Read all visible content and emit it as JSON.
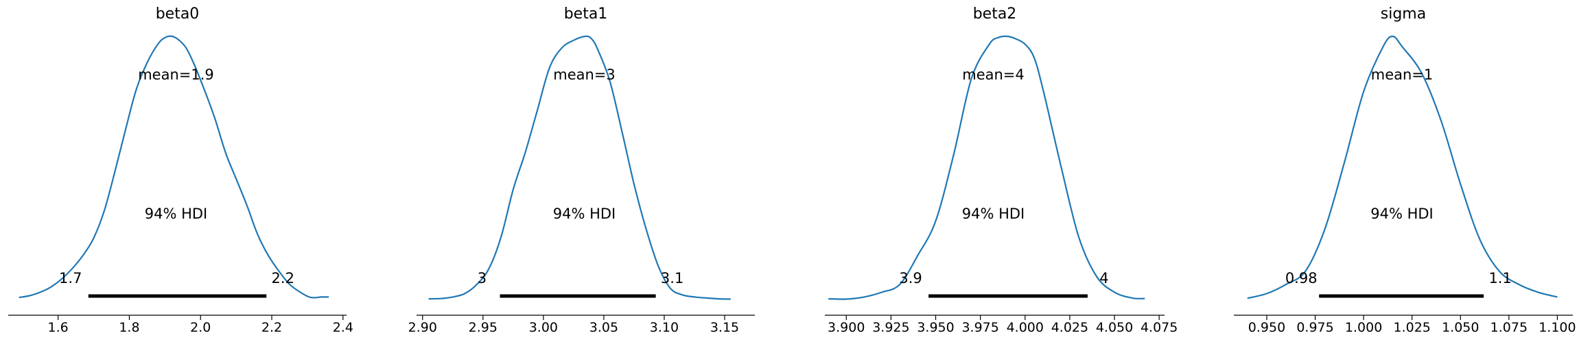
{
  "colors": {
    "density": "#1f77b4",
    "hdi_bar": "#000000",
    "axis": "#000000"
  },
  "chart_data": [
    {
      "type": "area",
      "title": "beta0",
      "mean_label": "mean=1.9",
      "hdi_label": "94% HDI",
      "hdi_low_label": "1.7",
      "hdi_high_label": "2.2",
      "hdi": [
        1.685,
        2.185
      ],
      "xlim": [
        1.46,
        2.41
      ],
      "xticks": [
        1.6,
        1.8,
        2.0,
        2.2,
        2.4
      ],
      "xtick_labels": [
        "1.6",
        "1.8",
        "2.0",
        "2.2",
        "2.4"
      ],
      "density": {
        "x": [
          1.49,
          1.52,
          1.55,
          1.58,
          1.61,
          1.64,
          1.67,
          1.7,
          1.73,
          1.76,
          1.79,
          1.82,
          1.85,
          1.88,
          1.9,
          1.92,
          1.94,
          1.96,
          1.98,
          2.01,
          2.04,
          2.07,
          2.1,
          2.13,
          2.16,
          2.19,
          2.22,
          2.25,
          2.28,
          2.31,
          2.34,
          2.36
        ],
        "y": [
          0.01,
          0.017,
          0.03,
          0.05,
          0.08,
          0.12,
          0.17,
          0.235,
          0.34,
          0.49,
          0.65,
          0.8,
          0.9,
          0.97,
          0.995,
          1.0,
          0.985,
          0.955,
          0.9,
          0.8,
          0.69,
          0.56,
          0.46,
          0.36,
          0.25,
          0.17,
          0.11,
          0.06,
          0.03,
          0.01,
          0.012,
          0.012
        ]
      }
    },
    {
      "type": "area",
      "title": "beta1",
      "mean_label": "mean=3",
      "hdi_label": "94% HDI",
      "hdi_low_label": "3",
      "hdi_high_label": "3.1",
      "hdi": [
        2.964,
        3.093
      ],
      "xlim": [
        2.895,
        3.175
      ],
      "xticks": [
        2.9,
        2.95,
        3.0,
        3.05,
        3.1,
        3.15
      ],
      "xtick_labels": [
        "2.90",
        "2.95",
        "3.00",
        "3.05",
        "3.10",
        "3.15"
      ],
      "density": {
        "x": [
          2.905,
          2.915,
          2.925,
          2.935,
          2.945,
          2.955,
          2.965,
          2.975,
          2.985,
          2.995,
          3.005,
          3.015,
          3.025,
          3.035,
          3.04,
          3.045,
          3.055,
          3.065,
          3.075,
          3.085,
          3.095,
          3.105,
          3.115,
          3.125,
          3.135,
          3.145,
          3.155
        ],
        "y": [
          0.005,
          0.006,
          0.012,
          0.025,
          0.06,
          0.12,
          0.24,
          0.42,
          0.56,
          0.72,
          0.88,
          0.955,
          0.985,
          1.0,
          0.99,
          0.95,
          0.83,
          0.64,
          0.44,
          0.27,
          0.13,
          0.045,
          0.02,
          0.012,
          0.008,
          0.005,
          0.004
        ]
      }
    },
    {
      "type": "area",
      "title": "beta2",
      "mean_label": "mean=4",
      "hdi_label": "94% HDI",
      "hdi_low_label": "3.9",
      "hdi_high_label": "4",
      "hdi": [
        3.946,
        4.035
      ],
      "xlim": [
        3.888,
        4.078
      ],
      "xticks": [
        3.9,
        3.925,
        3.95,
        3.975,
        4.0,
        4.025,
        4.05,
        4.075
      ],
      "xtick_labels": [
        "3.900",
        "3.925",
        "3.950",
        "3.975",
        "4.000",
        "4.025",
        "4.050",
        "4.075"
      ],
      "density": {
        "x": [
          3.89,
          3.9,
          3.91,
          3.92,
          3.93,
          3.94,
          3.95,
          3.96,
          3.97,
          3.98,
          3.985,
          3.99,
          3.995,
          4.0,
          4.005,
          4.01,
          4.02,
          4.03,
          4.04,
          4.05,
          4.06,
          4.067
        ],
        "y": [
          0.005,
          0.004,
          0.012,
          0.03,
          0.06,
          0.17,
          0.3,
          0.55,
          0.84,
          0.97,
          0.995,
          1.0,
          0.99,
          0.97,
          0.92,
          0.8,
          0.51,
          0.24,
          0.09,
          0.03,
          0.008,
          0.006
        ]
      }
    },
    {
      "type": "area",
      "title": "sigma",
      "mean_label": "mean=1",
      "hdi_label": "94% HDI",
      "hdi_low_label": "0.98",
      "hdi_high_label": "1.1",
      "hdi": [
        0.977,
        1.062
      ],
      "xlim": [
        0.933,
        1.108
      ],
      "xticks": [
        0.95,
        0.975,
        1.0,
        1.025,
        1.05,
        1.075,
        1.1
      ],
      "xtick_labels": [
        "0.950",
        "0.975",
        "1.000",
        "1.025",
        "1.050",
        "1.075",
        "1.100"
      ],
      "density": {
        "x": [
          0.94,
          0.95,
          0.96,
          0.97,
          0.98,
          0.99,
          1.0,
          1.01,
          1.015,
          1.02,
          1.03,
          1.04,
          1.05,
          1.06,
          1.07,
          1.08,
          1.09,
          1.1
        ],
        "y": [
          0.007,
          0.025,
          0.06,
          0.11,
          0.27,
          0.52,
          0.79,
          0.96,
          1.0,
          0.96,
          0.86,
          0.68,
          0.44,
          0.23,
          0.11,
          0.06,
          0.03,
          0.012
        ]
      }
    }
  ]
}
